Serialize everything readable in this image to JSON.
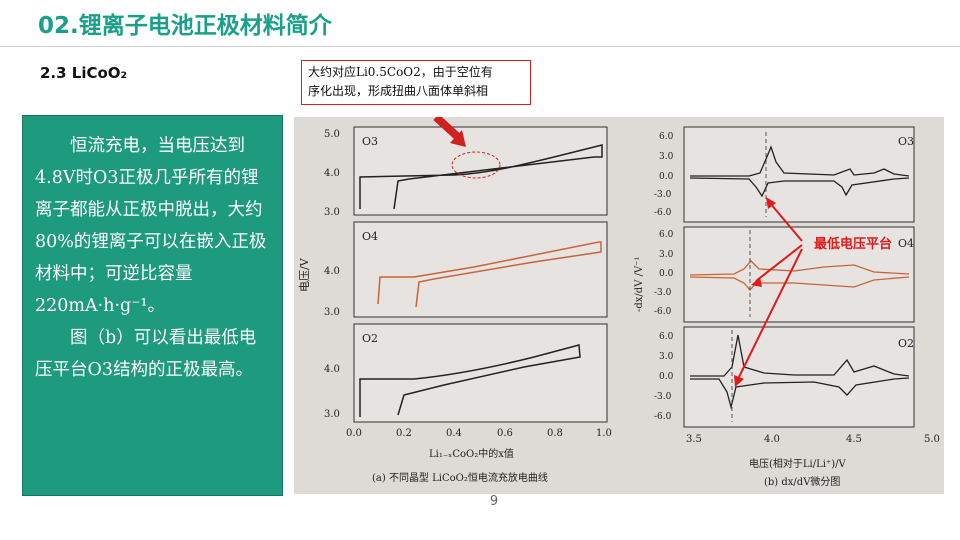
{
  "page": {
    "title": "02.锂离子电池正极材料简介",
    "section": "2.3 LiCoO₂",
    "page_number": "9"
  },
  "callout": {
    "line1": "大约对应Li0.5CoO2，由于空位有",
    "line2": "序化出现，形成扭曲八面体单斜相"
  },
  "text_box": {
    "para1": "恒流充电，当电压达到4.8V时O3正极几乎所有的锂离子都能从正极中脱出，大约80%的锂离子可以在嵌入正极材料中；可逆比容量220mA·h·g⁻¹。",
    "para2": "图（b）可以看出最低电压平台O3结构的正极最高。"
  },
  "figure": {
    "annotation": "最低电压平台",
    "left": {
      "panels": [
        "O3",
        "O4",
        "O2"
      ],
      "y_ticks_top": [
        "5.0",
        "4.0",
        "3.0"
      ],
      "y_ticks_mid": [
        "4.0",
        "3.0"
      ],
      "y_ticks_bottom": [
        "4.0",
        "3.0"
      ],
      "ylabel": "电压/V",
      "x_ticks": [
        "0.0",
        "0.2",
        "0.4",
        "0.6",
        "0.8",
        "1.0"
      ],
      "xlabel": "Li₁₋ₓCoO₂中的x值",
      "caption": "(a) 不同晶型 LiCoO₂恒电流充放电曲线"
    },
    "right": {
      "panels": [
        "O3",
        "O4",
        "O2"
      ],
      "y_ticks": [
        "6.0",
        "3.0",
        "0.0",
        "-3.0",
        "-6.0"
      ],
      "ylabel": "-dx/dV /V⁻¹",
      "x_ticks": [
        "3.5",
        "4.0",
        "4.5",
        "5.0"
      ],
      "xlabel": "电压(相对于Li/Li⁺)/V",
      "caption": "(b) dx/dV微分图"
    }
  },
  "colors": {
    "title": "#19a08a",
    "box": "#1e9a7f",
    "curve_dark": "#222222",
    "curve_orange": "#c8643a",
    "annotation_red": "#e11a1a"
  }
}
